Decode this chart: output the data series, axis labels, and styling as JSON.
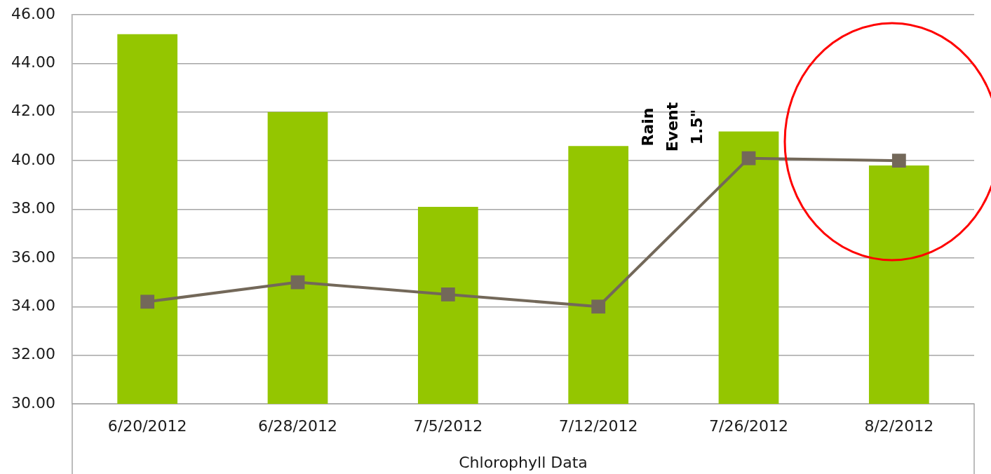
{
  "chart_data": {
    "type": "bar",
    "xlabel": "Chlorophyll Data",
    "categories": [
      "6/20/2012",
      "6/28/2012",
      "7/5/2012",
      "7/12/2012",
      "7/26/2012",
      "8/2/2012"
    ],
    "series": [
      {
        "type": "bar",
        "color": "#94c600",
        "values": [
          45.2,
          42.0,
          38.1,
          40.6,
          41.2,
          39.8
        ]
      },
      {
        "type": "line",
        "color": "#736859",
        "marker": "square",
        "values": [
          34.2,
          35.0,
          34.5,
          34.0,
          40.1,
          40.0
        ]
      }
    ],
    "ylim": [
      30,
      46
    ],
    "yticks": [
      {
        "value": 30,
        "label": "30.00"
      },
      {
        "value": 32,
        "label": "32.00"
      },
      {
        "value": 34,
        "label": "34.00"
      },
      {
        "value": 36,
        "label": "36.00"
      },
      {
        "value": 38,
        "label": "38.00"
      },
      {
        "value": 40,
        "label": "40.00"
      },
      {
        "value": 42,
        "label": "42.00"
      },
      {
        "value": 44,
        "label": "44.00"
      },
      {
        "value": 46,
        "label": "46.00"
      }
    ],
    "grid": "y",
    "annotations": [
      "Rain Event 1.5\""
    ]
  }
}
